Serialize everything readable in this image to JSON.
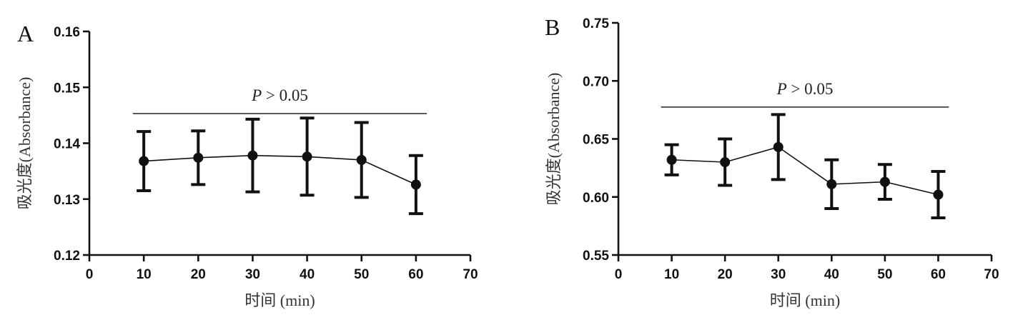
{
  "figure": {
    "panels": [
      {
        "letter": "A"
      },
      {
        "letter": "B"
      }
    ]
  },
  "chart_data": [
    {
      "type": "line",
      "panel": "A",
      "title": "",
      "xlabel": "时间 (min)",
      "ylabel": "吸光度(Absorbance)",
      "xlim": [
        0,
        70
      ],
      "ylim": [
        0.12,
        0.16
      ],
      "xticks": [
        0,
        10,
        20,
        30,
        40,
        50,
        60,
        70
      ],
      "yticks": [
        0.12,
        0.13,
        0.14,
        0.15,
        0.16
      ],
      "ytick_labels": [
        "0.12",
        "0.13",
        "0.14",
        "0.15",
        "0.16"
      ],
      "x": [
        10,
        20,
        30,
        40,
        50,
        60
      ],
      "y": [
        0.1368,
        0.1374,
        0.1378,
        0.1376,
        0.137,
        0.1326
      ],
      "error": [
        0.0053,
        0.0048,
        0.0065,
        0.0069,
        0.0067,
        0.0052
      ],
      "annotation": {
        "prefix": "P",
        "operator": ">",
        "value": "0.05",
        "x_from": 8,
        "x_to": 62,
        "y": 0.1453
      },
      "grid": false,
      "color": "#111111"
    },
    {
      "type": "line",
      "panel": "B",
      "title": "",
      "xlabel": "时间 (min)",
      "ylabel": "吸光度(Absorbance)",
      "xlim": [
        0,
        70
      ],
      "ylim": [
        0.55,
        0.75
      ],
      "xticks": [
        0,
        10,
        20,
        30,
        40,
        50,
        60,
        70
      ],
      "yticks": [
        0.55,
        0.6,
        0.65,
        0.7,
        0.75
      ],
      "ytick_labels": [
        "0.55",
        "0.60",
        "0.65",
        "0.70",
        "0.75"
      ],
      "x": [
        10,
        20,
        30,
        40,
        50,
        60
      ],
      "y": [
        0.632,
        0.63,
        0.643,
        0.611,
        0.613,
        0.602
      ],
      "error": [
        0.013,
        0.02,
        0.028,
        0.021,
        0.015,
        0.02
      ],
      "annotation": {
        "prefix": "P",
        "operator": ">",
        "value": "0.05",
        "x_from": 8,
        "x_to": 62,
        "y": 0.6775
      },
      "grid": false,
      "color": "#111111"
    }
  ]
}
